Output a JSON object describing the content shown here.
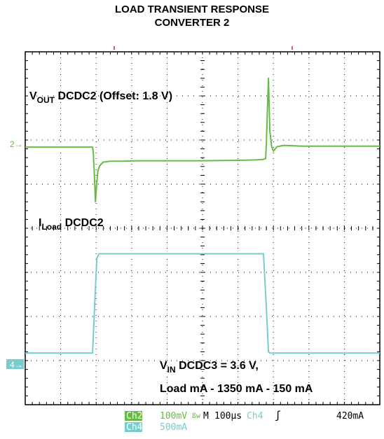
{
  "title": {
    "line1": "LOAD TRANSIENT RESPONSE",
    "line2": "CONVERTER 2"
  },
  "annotations": {
    "vout_main": "V",
    "vout_sub": "OUT",
    "vout_rest": " DCDC2 (Offset: 1.8 V)",
    "iload_main": "I",
    "iload_sub": "Load",
    "iload_rest": " DCDC2",
    "vin_main": "V",
    "vin_sub": "IN",
    "vin_rest": " DCDC3 = 3.6 V,",
    "load_line": "Load mA - 1350 mA - 150 mA"
  },
  "channel_markers": {
    "ch2": "2",
    "ch4": "4"
  },
  "scope_settings": {
    "ch2_label": "Ch2",
    "ch2_scale": "100mV",
    "bw_symbol": "ßw",
    "timebase_label": "M",
    "timebase": "100µs",
    "trigger_channel": "Ch4",
    "trigger_symbol": "ʃ",
    "trigger_level": "420mA",
    "ch4_label": "Ch4",
    "ch4_scale": "500mA"
  },
  "colors": {
    "vout": "#66bb44",
    "iload": "#77cccc",
    "grid": "#000000",
    "markers_ch2": "#66bb44",
    "markers_ch4": "#77cccc"
  },
  "chart_data": {
    "type": "line",
    "title": "LOAD TRANSIENT RESPONSE CONVERTER 2",
    "xlabel": "",
    "ylabel": "",
    "grid": true,
    "x_divisions": 10,
    "y_divisions": 8,
    "xlim": [
      0,
      10
    ],
    "ylim": [
      0,
      8
    ],
    "series": [
      {
        "name": "VOUT DCDC2",
        "x": [
          0,
          1.9,
          1.92,
          1.95,
          1.98,
          2.01,
          2.05,
          2.1,
          2.2,
          2.4,
          2.7,
          3.2,
          4,
          5,
          6,
          6.5,
          6.7,
          6.78,
          6.8,
          6.83,
          6.86,
          6.9,
          6.95,
          7.0,
          7.1,
          7.3,
          7.8,
          8.5,
          9.5,
          10
        ],
        "y": [
          5.84,
          5.84,
          5.7,
          5.2,
          4.6,
          4.95,
          5.3,
          5.42,
          5.5,
          5.52,
          5.52,
          5.53,
          5.53,
          5.53,
          5.54,
          5.55,
          5.56,
          5.58,
          5.9,
          6.7,
          7.4,
          6.2,
          5.85,
          5.75,
          5.85,
          5.88,
          5.86,
          5.86,
          5.86,
          5.86
        ]
      },
      {
        "name": "ILoad DCDC2",
        "x": [
          0,
          1.9,
          1.96,
          2.02,
          2.08,
          3,
          5,
          6.5,
          6.72,
          6.8,
          6.86,
          6.9,
          8,
          10
        ],
        "y": [
          1.17,
          1.17,
          2.3,
          3.32,
          3.42,
          3.42,
          3.42,
          3.42,
          3.42,
          2.2,
          1.2,
          1.17,
          1.17,
          1.17
        ]
      }
    ]
  }
}
